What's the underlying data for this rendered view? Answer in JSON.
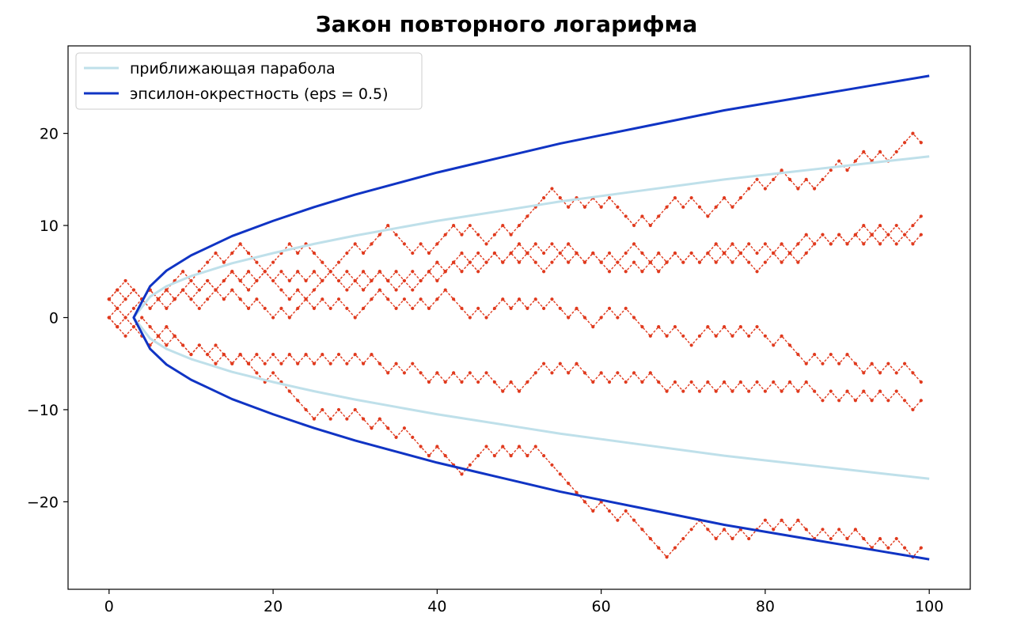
{
  "chart_data": {
    "type": "line",
    "title": "Закон повторного логарифма",
    "xlabel": "",
    "ylabel": "",
    "xlim": [
      -5,
      105
    ],
    "ylim": [
      -29.5,
      29.5
    ],
    "x_ticks": [
      0,
      20,
      40,
      60,
      80,
      100
    ],
    "y_ticks": [
      -20,
      -10,
      0,
      10,
      20
    ],
    "x_tick_labels": [
      "0",
      "20",
      "40",
      "60",
      "80",
      "100"
    ],
    "y_tick_labels": [
      "−20",
      "−10",
      "0",
      "10",
      "20"
    ],
    "grid": false,
    "legend_position": "top-left",
    "legend": [
      {
        "name": "приближающая парабола",
        "color": "#bfe0ea"
      },
      {
        "name": "эпсилон-окрестность (eps = 0.5)",
        "color": "#1034c4"
      }
    ],
    "curves": {
      "parabola": {
        "color": "#bfe0ea",
        "x": [
          3,
          5,
          7,
          10,
          15,
          20,
          25,
          30,
          35,
          40,
          45,
          50,
          55,
          60,
          65,
          70,
          75,
          80,
          85,
          90,
          95,
          100
        ],
        "y_upper": [
          0.0,
          2.27,
          3.4,
          4.5,
          5.9,
          7.0,
          8.0,
          8.9,
          9.7,
          10.5,
          11.2,
          11.9,
          12.6,
          13.2,
          13.8,
          14.4,
          15.0,
          15.5,
          16.0,
          16.5,
          17.0,
          17.5
        ]
      },
      "envelope": {
        "color": "#1034c4",
        "x": [
          3,
          5,
          7,
          10,
          15,
          20,
          25,
          30,
          35,
          40,
          45,
          50,
          55,
          60,
          65,
          70,
          75,
          80,
          85,
          90,
          95,
          100
        ],
        "y_upper": [
          0.0,
          3.4,
          5.1,
          6.75,
          8.85,
          10.5,
          12.0,
          13.35,
          14.55,
          15.75,
          16.8,
          17.85,
          18.9,
          19.8,
          20.7,
          21.6,
          22.5,
          23.25,
          24.0,
          24.75,
          25.5,
          26.25
        ]
      }
    },
    "walks": {
      "color": "#e03a1e",
      "start_x": 0,
      "step_x": 1,
      "starts": [
        0,
        2,
        0,
        2,
        0,
        2
      ],
      "steps": [
        "+-++-++++-+++-++---+++-+---+++-+++---+-+++-+--++-+++++--+-+-+---+-+++-+--++-+++-++--+-+++-++-+-+++-",
        "++--+-+-+--++-+--+--+-++-+-+--+++--+-+-++---+-++-+-+-+--+--++-+---+-+--++-+-+-+--+---+-+-+--+-+-+--",
        "-+-+--+---+--+-+---+-----+-+-+--+--+---+---+++-+-+-+-------+--+-----++++--+-+-++-+-+--+-+-+--+-+--+",
        "-++-+-+-++-+-++-+-+---+-+++-+-+-+--+-++-+++-+-+-++-+-+-+--+--+-+-+-++-+-+-+-+--++-+-+++-+-++-+-+-++",
        "--+--+-+--+-+--+-+-+-+-+-+-+-+-+--+-+--+-+-+-+--+-+++-+-+--+-+-+-+--+-+-+-+-+-+-+-+-+--+-+-+-+-+--+",
        "+-+-+--++-++-++--++-+-+-+-+--+-++-+-+-++-+-+-++-+-+--++-+-+-+-++--+-+-+-++-+-+-+-+-++-+-+-+-+-+-+-+"
      ]
    }
  }
}
